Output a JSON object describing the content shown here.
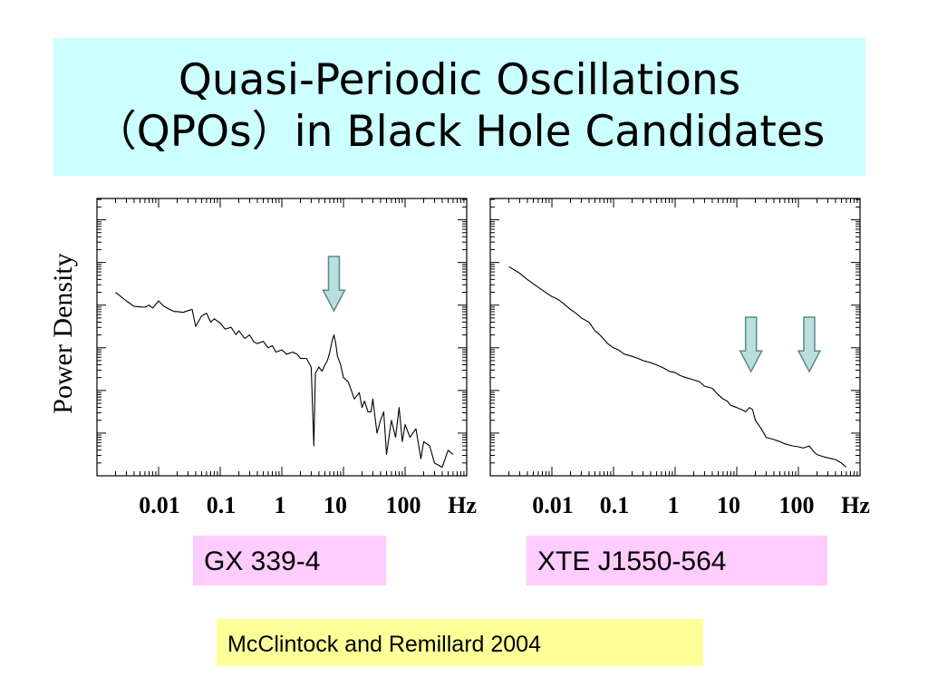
{
  "title": {
    "line1": "Quasi-Periodic Oscillations",
    "line2": "（QPOs）in Black Hole Candidates"
  },
  "ylabel": "Power Density",
  "citation": "McClintock and Remillard 2004",
  "colors": {
    "title_bg": "#ccffff",
    "label_bg": "#ffccff",
    "citation_bg": "#ffff99",
    "arrow_fill": "#b9dede",
    "arrow_stroke": "#5a8a8a"
  },
  "chart_data": [
    {
      "type": "line",
      "source_label": "GX 339-4",
      "x_scale": "log",
      "x_tick_labels": [
        "0.01",
        "0.1",
        "1",
        "10",
        "100"
      ],
      "x_unit": "Hz",
      "x_range": [
        0.001,
        1000
      ],
      "ylabel": "Power Density",
      "y_scale": "log",
      "y_range_decades": [
        0,
        6.5
      ],
      "arrow_marks": [
        7
      ],
      "x": [
        0.002,
        0.003,
        0.004,
        0.005,
        0.006,
        0.007,
        0.008,
        0.01,
        0.012,
        0.015,
        0.018,
        0.02,
        0.025,
        0.03,
        0.035,
        0.04,
        0.05,
        0.06,
        0.07,
        0.08,
        0.1,
        0.12,
        0.15,
        0.18,
        0.2,
        0.25,
        0.3,
        0.35,
        0.4,
        0.5,
        0.6,
        0.7,
        0.8,
        1,
        1.2,
        1.5,
        1.8,
        2,
        2.5,
        3,
        3.3,
        3.5,
        4,
        4.5,
        5,
        5.5,
        6,
        6.5,
        7,
        7.5,
        8,
        9,
        10,
        12,
        15,
        18,
        20,
        22,
        25,
        28,
        30,
        35,
        40,
        45,
        50,
        60,
        70,
        80,
        90,
        100,
        120,
        150,
        180,
        200,
        250,
        300,
        400,
        500,
        600
      ],
      "y_decades": [
        4.3,
        4.1,
        3.97,
        3.96,
        3.95,
        4.0,
        3.93,
        4.1,
        3.98,
        3.9,
        3.85,
        3.85,
        3.83,
        3.87,
        3.9,
        3.5,
        3.75,
        3.81,
        3.6,
        3.68,
        3.58,
        3.44,
        3.48,
        3.31,
        3.4,
        3.22,
        3.3,
        3.14,
        3.1,
        3.15,
        3.0,
        3.05,
        2.9,
        2.95,
        2.85,
        2.9,
        2.84,
        2.75,
        2.75,
        2.55,
        0.7,
        2.4,
        2.55,
        2.45,
        2.6,
        2.7,
        2.9,
        3.15,
        3.3,
        3.1,
        2.8,
        2.6,
        2.3,
        2.2,
        1.8,
        1.95,
        1.6,
        1.75,
        1.5,
        1.5,
        1.8,
        1.0,
        1.3,
        1.5,
        0.5,
        1.3,
        0.9,
        1.6,
        0.8,
        1.2,
        0.9,
        1.1,
        0.4,
        0.8,
        0.7,
        0.3,
        0.2,
        0.6,
        0.5
      ]
    },
    {
      "type": "line",
      "source_label": "XTE J1550-564",
      "x_scale": "log",
      "x_tick_labels": [
        "0.01",
        "0.1",
        "1",
        "10",
        "100"
      ],
      "x_unit": "Hz",
      "x_range": [
        0.001,
        1000
      ],
      "ylabel": "Power Density",
      "y_scale": "log",
      "y_range_decades": [
        0,
        6.5
      ],
      "arrow_marks": [
        17,
        150
      ],
      "x": [
        0.002,
        0.003,
        0.004,
        0.005,
        0.007,
        0.01,
        0.012,
        0.015,
        0.02,
        0.025,
        0.03,
        0.04,
        0.05,
        0.06,
        0.07,
        0.08,
        0.1,
        0.12,
        0.15,
        0.2,
        0.25,
        0.3,
        0.4,
        0.5,
        0.6,
        0.7,
        0.8,
        1,
        1.2,
        1.5,
        2,
        2.5,
        3,
        4,
        5,
        6,
        7,
        8,
        10,
        12,
        14,
        16,
        18,
        20,
        25,
        30,
        40,
        50,
        60,
        80,
        100,
        120,
        150,
        180,
        200,
        250,
        300,
        400,
        500,
        600
      ],
      "y_decades": [
        4.9,
        4.75,
        4.6,
        4.5,
        4.35,
        4.2,
        4.15,
        4.05,
        3.9,
        3.8,
        3.7,
        3.6,
        3.4,
        3.3,
        3.2,
        3.1,
        3.0,
        2.95,
        2.85,
        2.8,
        2.75,
        2.7,
        2.65,
        2.6,
        2.55,
        2.5,
        2.45,
        2.42,
        2.35,
        2.3,
        2.25,
        2.2,
        2.1,
        2.05,
        1.9,
        1.8,
        1.75,
        1.65,
        1.6,
        1.55,
        1.5,
        1.6,
        1.55,
        1.3,
        1.1,
        0.9,
        0.85,
        0.8,
        0.75,
        0.7,
        0.68,
        0.65,
        0.7,
        0.55,
        0.5,
        0.45,
        0.42,
        0.38,
        0.3,
        0.2
      ]
    }
  ]
}
